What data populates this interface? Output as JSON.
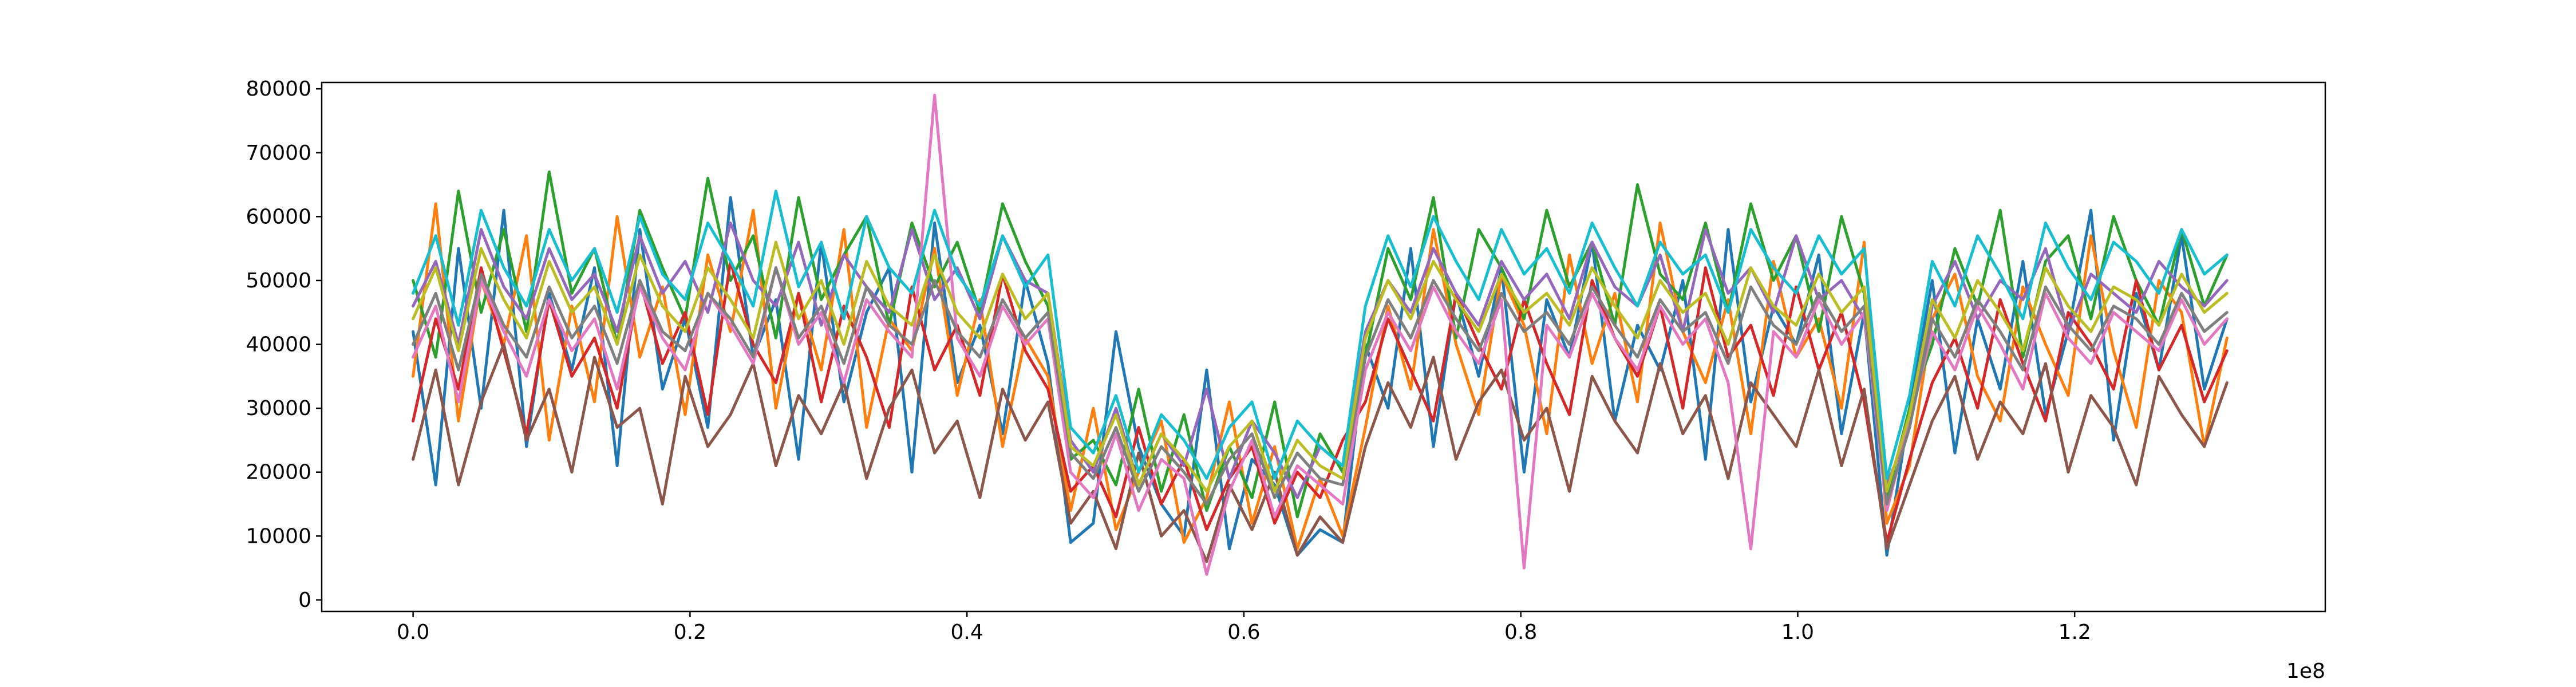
{
  "chart_data": {
    "type": "line",
    "title": "",
    "xlabel": "",
    "ylabel": "",
    "x_offset_text": "1e8",
    "xlim": [
      -0.066,
      1.381
    ],
    "ylim": [
      -1800,
      81000
    ],
    "x_ticks": [
      0.0,
      0.2,
      0.4,
      0.6,
      0.8,
      1.0,
      1.2
    ],
    "x_tick_labels": [
      "0.0",
      "0.2",
      "0.4",
      "0.6",
      "0.8",
      "1.0",
      "1.2"
    ],
    "y_ticks": [
      0,
      10000,
      20000,
      30000,
      40000,
      50000,
      60000,
      70000,
      80000
    ],
    "y_tick_labels": [
      "0",
      "10000",
      "20000",
      "30000",
      "40000",
      "50000",
      "60000",
      "70000",
      "80000"
    ],
    "grid": false,
    "legend": "none",
    "x_start": 0.0,
    "x_step": 0.016375,
    "series_colors": [
      "#1f77b4",
      "#ff7f0e",
      "#2ca02c",
      "#d62728",
      "#9467bd",
      "#8c564b",
      "#e377c2",
      "#7f7f7f",
      "#bcbd22",
      "#17becf"
    ],
    "series": [
      {
        "color": "#1f77b4",
        "values": [
          42000,
          18000,
          55000,
          30000,
          61000,
          24000,
          48000,
          36000,
          52000,
          21000,
          58000,
          33000,
          44000,
          27000,
          63000,
          38000,
          47000,
          22000,
          56000,
          31000,
          45000,
          52000,
          20000,
          59000,
          34000,
          43000,
          26000,
          50000,
          37000,
          9000,
          12000,
          42000,
          24000,
          15000,
          10000,
          36000,
          8000,
          22000,
          18000,
          7000,
          11000,
          9000,
          40000,
          30000,
          55000,
          24000,
          48000,
          35000,
          52000,
          20000,
          47000,
          38000,
          56000,
          28000,
          43000,
          36000,
          50000,
          22000,
          58000,
          31000,
          46000,
          40000,
          54000,
          26000,
          45000,
          7000,
          30000,
          50000,
          23000,
          44000,
          33000,
          53000,
          29000,
          42000,
          61000,
          25000,
          48000,
          36000,
          57000,
          33000,
          44000
        ]
      },
      {
        "color": "#ff7f0e",
        "values": [
          35000,
          62000,
          28000,
          50000,
          40000,
          57000,
          25000,
          46000,
          31000,
          60000,
          38000,
          49000,
          29000,
          54000,
          42000,
          61000,
          30000,
          48000,
          36000,
          58000,
          27000,
          44000,
          39000,
          55000,
          32000,
          47000,
          24000,
          41000,
          35000,
          14000,
          30000,
          11000,
          20000,
          28000,
          9000,
          16000,
          31000,
          12000,
          24000,
          8000,
          19000,
          10000,
          27000,
          46000,
          33000,
          58000,
          40000,
          29000,
          51000,
          43000,
          26000,
          54000,
          37000,
          48000,
          31000,
          59000,
          42000,
          34000,
          47000,
          26000,
          53000,
          38000,
          44000,
          30000,
          56000,
          12000,
          21000,
          44000,
          51000,
          35000,
          28000,
          49000,
          40000,
          32000,
          57000,
          39000,
          27000,
          50000,
          45000,
          24000,
          41000
        ]
      },
      {
        "color": "#2ca02c",
        "values": [
          50000,
          38000,
          64000,
          45000,
          58000,
          42000,
          67000,
          48000,
          55000,
          40000,
          61000,
          52000,
          44000,
          66000,
          50000,
          57000,
          41000,
          63000,
          47000,
          54000,
          60000,
          43000,
          59000,
          49000,
          56000,
          45000,
          62000,
          53000,
          46000,
          22000,
          25000,
          18000,
          33000,
          17000,
          29000,
          14000,
          24000,
          16000,
          31000,
          13000,
          26000,
          20000,
          38000,
          55000,
          47000,
          63000,
          41000,
          58000,
          52000,
          44000,
          61000,
          49000,
          56000,
          43000,
          65000,
          51000,
          47000,
          59000,
          45000,
          62000,
          50000,
          57000,
          42000,
          60000,
          48000,
          16000,
          30000,
          40000,
          55000,
          46000,
          61000,
          38000,
          53000,
          57000,
          44000,
          60000,
          50000,
          43000,
          58000,
          46000,
          54000
        ]
      },
      {
        "color": "#d62728",
        "values": [
          28000,
          44000,
          33000,
          52000,
          39000,
          26000,
          47000,
          35000,
          41000,
          30000,
          50000,
          37000,
          45000,
          29000,
          53000,
          40000,
          34000,
          48000,
          31000,
          46000,
          38000,
          27000,
          49000,
          36000,
          43000,
          32000,
          51000,
          39000,
          33000,
          17000,
          21000,
          13000,
          27000,
          15000,
          22000,
          11000,
          19000,
          24000,
          12000,
          20000,
          16000,
          25000,
          31000,
          44000,
          36000,
          28000,
          48000,
          40000,
          33000,
          47000,
          37000,
          29000,
          50000,
          41000,
          35000,
          46000,
          30000,
          52000,
          38000,
          43000,
          32000,
          49000,
          36000,
          45000,
          31000,
          9000,
          22000,
          34000,
          41000,
          30000,
          47000,
          37000,
          28000,
          45000,
          40000,
          33000,
          50000,
          36000,
          43000,
          31000,
          39000
        ]
      },
      {
        "color": "#9467bd",
        "values": [
          46000,
          53000,
          40000,
          58000,
          49000,
          44000,
          55000,
          47000,
          51000,
          42000,
          57000,
          48000,
          53000,
          45000,
          59000,
          50000,
          46000,
          56000,
          43000,
          54000,
          49000,
          45000,
          58000,
          47000,
          52000,
          44000,
          57000,
          50000,
          48000,
          25000,
          20000,
          30000,
          18000,
          26000,
          21000,
          33000,
          19000,
          28000,
          23000,
          16000,
          24000,
          21000,
          42000,
          50000,
          45000,
          55000,
          48000,
          43000,
          53000,
          47000,
          51000,
          44000,
          56000,
          49000,
          46000,
          54000,
          42000,
          58000,
          48000,
          52000,
          45000,
          57000,
          47000,
          50000,
          44000,
          18000,
          27000,
          46000,
          53000,
          44000,
          50000,
          47000,
          55000,
          42000,
          51000,
          48000,
          45000,
          53000,
          49000,
          46000,
          50000
        ]
      },
      {
        "color": "#8c564b",
        "values": [
          22000,
          36000,
          18000,
          31000,
          40000,
          25000,
          33000,
          20000,
          38000,
          27000,
          30000,
          15000,
          35000,
          24000,
          29000,
          37000,
          21000,
          32000,
          26000,
          34000,
          19000,
          30000,
          36000,
          23000,
          28000,
          16000,
          33000,
          25000,
          31000,
          12000,
          17000,
          8000,
          23000,
          10000,
          14000,
          6000,
          18000,
          11000,
          20000,
          7000,
          13000,
          9000,
          24000,
          34000,
          27000,
          38000,
          22000,
          31000,
          36000,
          25000,
          30000,
          17000,
          35000,
          28000,
          23000,
          37000,
          26000,
          32000,
          19000,
          34000,
          29000,
          24000,
          36000,
          21000,
          33000,
          8000,
          18000,
          28000,
          35000,
          22000,
          31000,
          26000,
          37000,
          20000,
          32000,
          27000,
          18000,
          35000,
          29000,
          24000,
          34000
        ]
      },
      {
        "color": "#e377c2",
        "values": [
          38000,
          46000,
          31000,
          50000,
          42000,
          35000,
          47000,
          39000,
          44000,
          33000,
          49000,
          41000,
          36000,
          48000,
          43000,
          37000,
          52000,
          40000,
          45000,
          34000,
          47000,
          42000,
          38000,
          79000,
          41000,
          35000,
          46000,
          40000,
          44000,
          20000,
          16000,
          26000,
          14000,
          22000,
          19000,
          4000,
          17000,
          25000,
          13000,
          21000,
          18000,
          15000,
          36000,
          45000,
          39000,
          49000,
          42000,
          37000,
          47000,
          5000,
          43000,
          38000,
          48000,
          41000,
          36000,
          46000,
          40000,
          44000,
          34000,
          8000,
          42000,
          38000,
          47000,
          40000,
          45000,
          14000,
          28000,
          42000,
          36000,
          46000,
          40000,
          33000,
          48000,
          41000,
          37000,
          45000,
          42000,
          39000,
          47000,
          40000,
          44000
        ]
      },
      {
        "color": "#7f7f7f",
        "values": [
          40000,
          48000,
          36000,
          51000,
          43000,
          38000,
          49000,
          41000,
          46000,
          37000,
          50000,
          42000,
          39000,
          48000,
          44000,
          38000,
          52000,
          41000,
          46000,
          37000,
          49000,
          43000,
          40000,
          50000,
          42000,
          38000,
          47000,
          41000,
          45000,
          23000,
          19000,
          27000,
          17000,
          24000,
          20000,
          15000,
          22000,
          26000,
          16000,
          23000,
          19000,
          18000,
          38000,
          47000,
          41000,
          50000,
          44000,
          39000,
          48000,
          42000,
          45000,
          40000,
          49000,
          43000,
          38000,
          47000,
          42000,
          45000,
          37000,
          49000,
          43000,
          40000,
          48000,
          42000,
          46000,
          15000,
          27000,
          44000,
          38000,
          47000,
          42000,
          36000,
          49000,
          43000,
          39000,
          46000,
          44000,
          40000,
          48000,
          42000,
          45000
        ]
      },
      {
        "color": "#bcbd22",
        "values": [
          44000,
          52000,
          39000,
          55000,
          47000,
          41000,
          53000,
          45000,
          49000,
          40000,
          54000,
          46000,
          42000,
          52000,
          47000,
          41000,
          56000,
          44000,
          50000,
          40000,
          53000,
          46000,
          43000,
          54000,
          45000,
          41000,
          51000,
          44000,
          48000,
          24000,
          21000,
          29000,
          18000,
          26000,
          22000,
          17000,
          24000,
          28000,
          17000,
          25000,
          21000,
          19000,
          41000,
          50000,
          44000,
          53000,
          47000,
          42000,
          51000,
          45000,
          48000,
          43000,
          52000,
          46000,
          41000,
          50000,
          45000,
          48000,
          40000,
          52000,
          46000,
          43000,
          51000,
          45000,
          49000,
          17000,
          29000,
          47000,
          41000,
          50000,
          45000,
          39000,
          52000,
          46000,
          42000,
          49000,
          47000,
          43000,
          51000,
          45000,
          48000
        ]
      },
      {
        "color": "#17becf",
        "values": [
          48000,
          57000,
          43000,
          61000,
          52000,
          46000,
          58000,
          50000,
          55000,
          45000,
          60000,
          51000,
          47000,
          59000,
          53000,
          46000,
          64000,
          49000,
          56000,
          44000,
          60000,
          52000,
          48000,
          61000,
          51000,
          46000,
          57000,
          49000,
          54000,
          27000,
          23000,
          32000,
          20000,
          29000,
          25000,
          19000,
          27000,
          31000,
          19000,
          28000,
          24000,
          21000,
          46000,
          57000,
          49000,
          60000,
          53000,
          47000,
          58000,
          51000,
          55000,
          48000,
          59000,
          52000,
          46000,
          56000,
          51000,
          54000,
          45000,
          58000,
          52000,
          48000,
          57000,
          51000,
          55000,
          19000,
          32000,
          53000,
          46000,
          57000,
          51000,
          44000,
          59000,
          52000,
          47000,
          56000,
          53000,
          48000,
          58000,
          51000,
          54000
        ]
      }
    ]
  }
}
